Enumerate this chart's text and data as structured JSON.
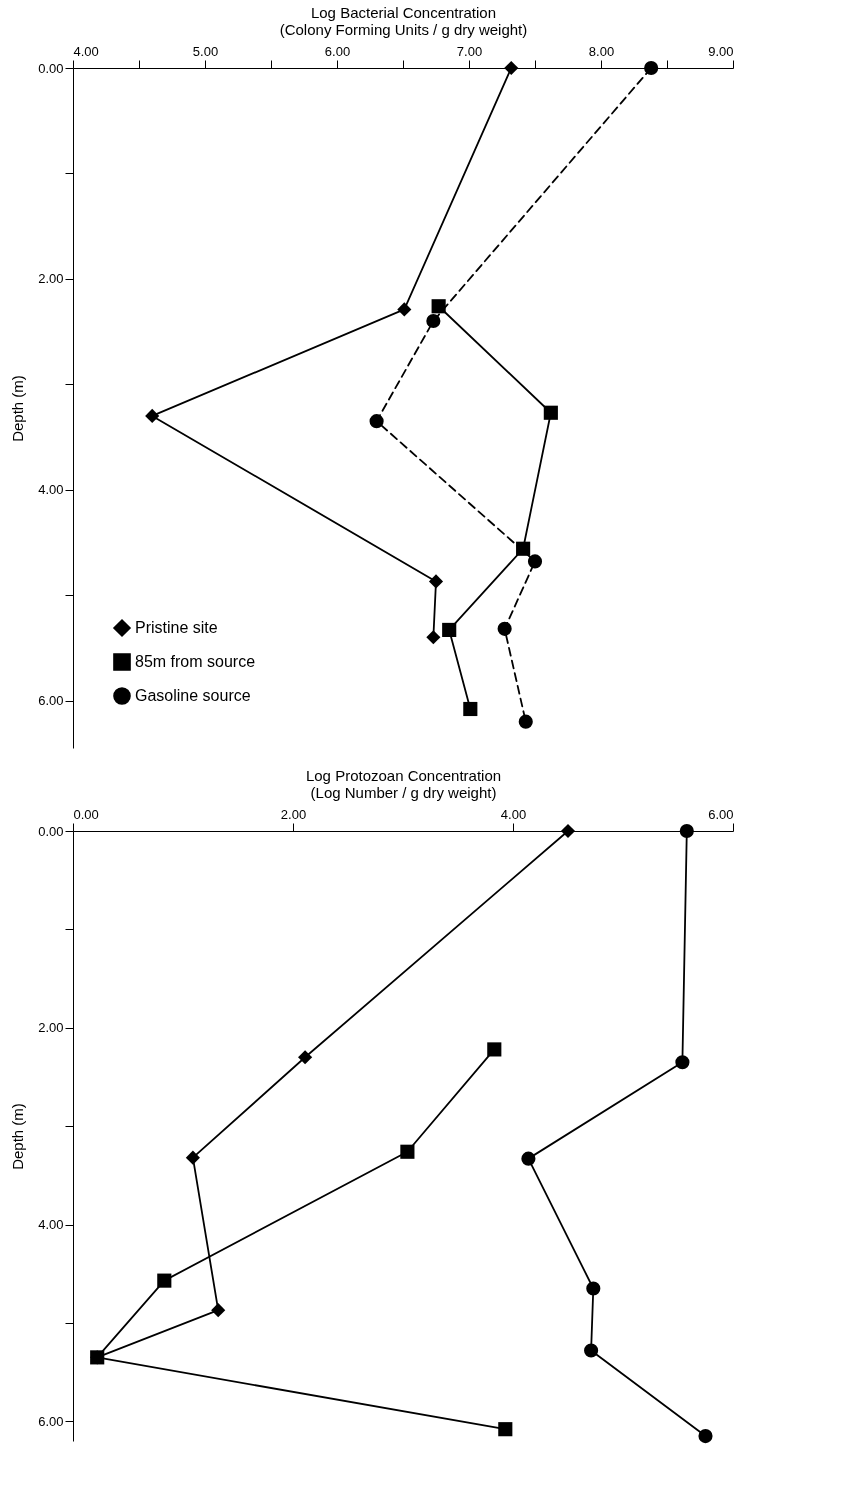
{
  "chart_data": [
    {
      "type": "line",
      "xlabel": "Log Bacterial Concentration\n(Colony Forming Units / g dry weight)",
      "ylabel": "Depth (m)",
      "xlim": [
        4,
        9
      ],
      "ylim": [
        6.45,
        0
      ],
      "xticks": [
        {
          "value": 4,
          "label": "4.00"
        },
        {
          "value": 4.5,
          "label": null
        },
        {
          "value": 5,
          "label": "5.00"
        },
        {
          "value": 5.5,
          "label": null
        },
        {
          "value": 6,
          "label": "6.00"
        },
        {
          "value": 6.5,
          "label": null
        },
        {
          "value": 7,
          "label": "7.00"
        },
        {
          "value": 7.5,
          "label": null
        },
        {
          "value": 8,
          "label": "8.00"
        },
        {
          "value": 8.5,
          "label": null
        },
        {
          "value": 9,
          "label": "9.00"
        }
      ],
      "yticks": [
        {
          "value": 0,
          "label": "0.00"
        },
        {
          "value": 1,
          "label": null
        },
        {
          "value": 2,
          "label": "2.00"
        },
        {
          "value": 3,
          "label": null
        },
        {
          "value": 4,
          "label": "4.00"
        },
        {
          "value": 5,
          "label": null
        },
        {
          "value": 6,
          "label": "6.00"
        }
      ],
      "grid": false,
      "legend": "bottom left",
      "series": [
        {
          "name": "Pristine site",
          "color": "#000000",
          "marker": "diamond",
          "line_style": "solid",
          "x": [
            7.32,
            6.51,
            4.6,
            6.75,
            6.73
          ],
          "values": [
            0,
            2.29,
            3.3,
            4.87,
            5.4
          ]
        },
        {
          "name": "85m from source",
          "color": "#000000",
          "marker": "square",
          "line_style": "solid",
          "x": [
            6.77,
            7.62,
            7.41,
            6.85,
            7.01
          ],
          "values": [
            2.26,
            3.27,
            4.56,
            5.33,
            6.08
          ]
        },
        {
          "name": "Gasoline source",
          "color": "#000000",
          "marker": "circle",
          "line_style": "dashed",
          "x": [
            8.38,
            6.73,
            6.3,
            7.5,
            7.27,
            7.43
          ],
          "values": [
            0,
            2.4,
            3.35,
            4.68,
            5.32,
            6.2
          ]
        }
      ]
    },
    {
      "type": "line",
      "xlabel": "Log Protozoan Concentration\n(Log Number / g dry weight)",
      "ylabel": "Depth (m)",
      "xlim": [
        0,
        6
      ],
      "ylim": [
        6.2,
        0
      ],
      "xticks": [
        {
          "value": 0,
          "label": "0.00"
        },
        {
          "value": 2,
          "label": "2.00"
        },
        {
          "value": 4,
          "label": "4.00"
        },
        {
          "value": 6,
          "label": "6.00"
        }
      ],
      "yticks": [
        {
          "value": 0,
          "label": "0.00"
        },
        {
          "value": 1,
          "label": null
        },
        {
          "value": 2,
          "label": "2.00"
        },
        {
          "value": 3,
          "label": null
        },
        {
          "value": 4,
          "label": "4.00"
        },
        {
          "value": 5,
          "label": null
        },
        {
          "value": 6,
          "label": "6.00"
        }
      ],
      "grid": false,
      "legend": false,
      "series": [
        {
          "color": "#000000",
          "marker": "diamond",
          "line_style": "solid",
          "x": [
            4.5,
            2.11,
            1.09,
            1.32,
            0.22
          ],
          "values": [
            0,
            2.3,
            3.32,
            4.87,
            5.35
          ]
        },
        {
          "color": "#000000",
          "marker": "square",
          "line_style": "solid",
          "x": [
            3.83,
            3.04,
            0.83,
            0.22,
            3.93
          ],
          "values": [
            2.22,
            3.26,
            4.57,
            5.35,
            6.08
          ]
        },
        {
          "color": "#000000",
          "marker": "circle",
          "line_style": "solid",
          "x": [
            5.58,
            5.54,
            4.14,
            4.73,
            4.71,
            5.75
          ],
          "values": [
            0,
            2.35,
            3.33,
            4.65,
            5.28,
            6.15
          ]
        }
      ]
    }
  ]
}
